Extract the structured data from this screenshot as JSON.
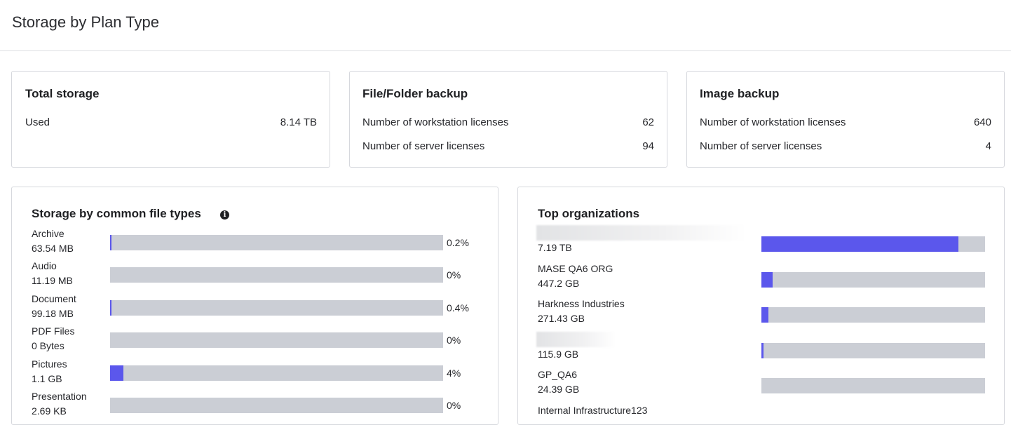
{
  "header": {
    "title": "Storage by Plan Type"
  },
  "total_storage": {
    "title": "Total storage",
    "rows": [
      {
        "label": "Used",
        "value": "8.14 TB"
      }
    ]
  },
  "file_folder": {
    "title": "File/Folder backup",
    "rows": [
      {
        "label": "Number of workstation licenses",
        "value": "62"
      },
      {
        "label": "Number of server licenses",
        "value": "94"
      }
    ]
  },
  "image_backup": {
    "title": "Image backup",
    "rows": [
      {
        "label": "Number of workstation licenses",
        "value": "640"
      },
      {
        "label": "Number of server licenses",
        "value": "4"
      }
    ]
  },
  "file_types": {
    "title": "Storage by common file types",
    "info_icon": "info-icon",
    "items": [
      {
        "name": "Archive",
        "size": "63.54 MB",
        "percent_label": "0.2%",
        "fill_fraction": 0.002
      },
      {
        "name": "Audio",
        "size": "11.19 MB",
        "percent_label": "0%",
        "fill_fraction": 0
      },
      {
        "name": "Document",
        "size": "99.18 MB",
        "percent_label": "0.4%",
        "fill_fraction": 0.004
      },
      {
        "name": "PDF Files",
        "size": "0 Bytes",
        "percent_label": "0%",
        "fill_fraction": 0
      },
      {
        "name": "Pictures",
        "size": "1.1 GB",
        "percent_label": "4%",
        "fill_fraction": 0.04
      },
      {
        "name": "Presentation",
        "size": "2.69 KB",
        "percent_label": "0%",
        "fill_fraction": 0
      }
    ]
  },
  "top_orgs": {
    "title": "Top organizations",
    "items": [
      {
        "name": "",
        "name_redacted": true,
        "size": "7.19 TB",
        "fill_fraction": 0.88
      },
      {
        "name": "MASE QA6 ORG",
        "name_redacted": false,
        "size": "447.2 GB",
        "fill_fraction": 0.05
      },
      {
        "name": "Harkness Industries",
        "name_redacted": false,
        "size": "271.43 GB",
        "fill_fraction": 0.03
      },
      {
        "name": "",
        "name_redacted": true,
        "size": "115.9 GB",
        "fill_fraction": 0.01
      },
      {
        "name": "GP_QA6",
        "name_redacted": false,
        "size": "24.39 GB",
        "fill_fraction": 0
      },
      {
        "name": "Internal Infrastructure123",
        "name_redacted": false,
        "size": "",
        "fill_fraction": 0
      }
    ]
  },
  "colors": {
    "accent": "#5b57ec",
    "track": "#cbced5",
    "border": "#d6d8dd"
  }
}
